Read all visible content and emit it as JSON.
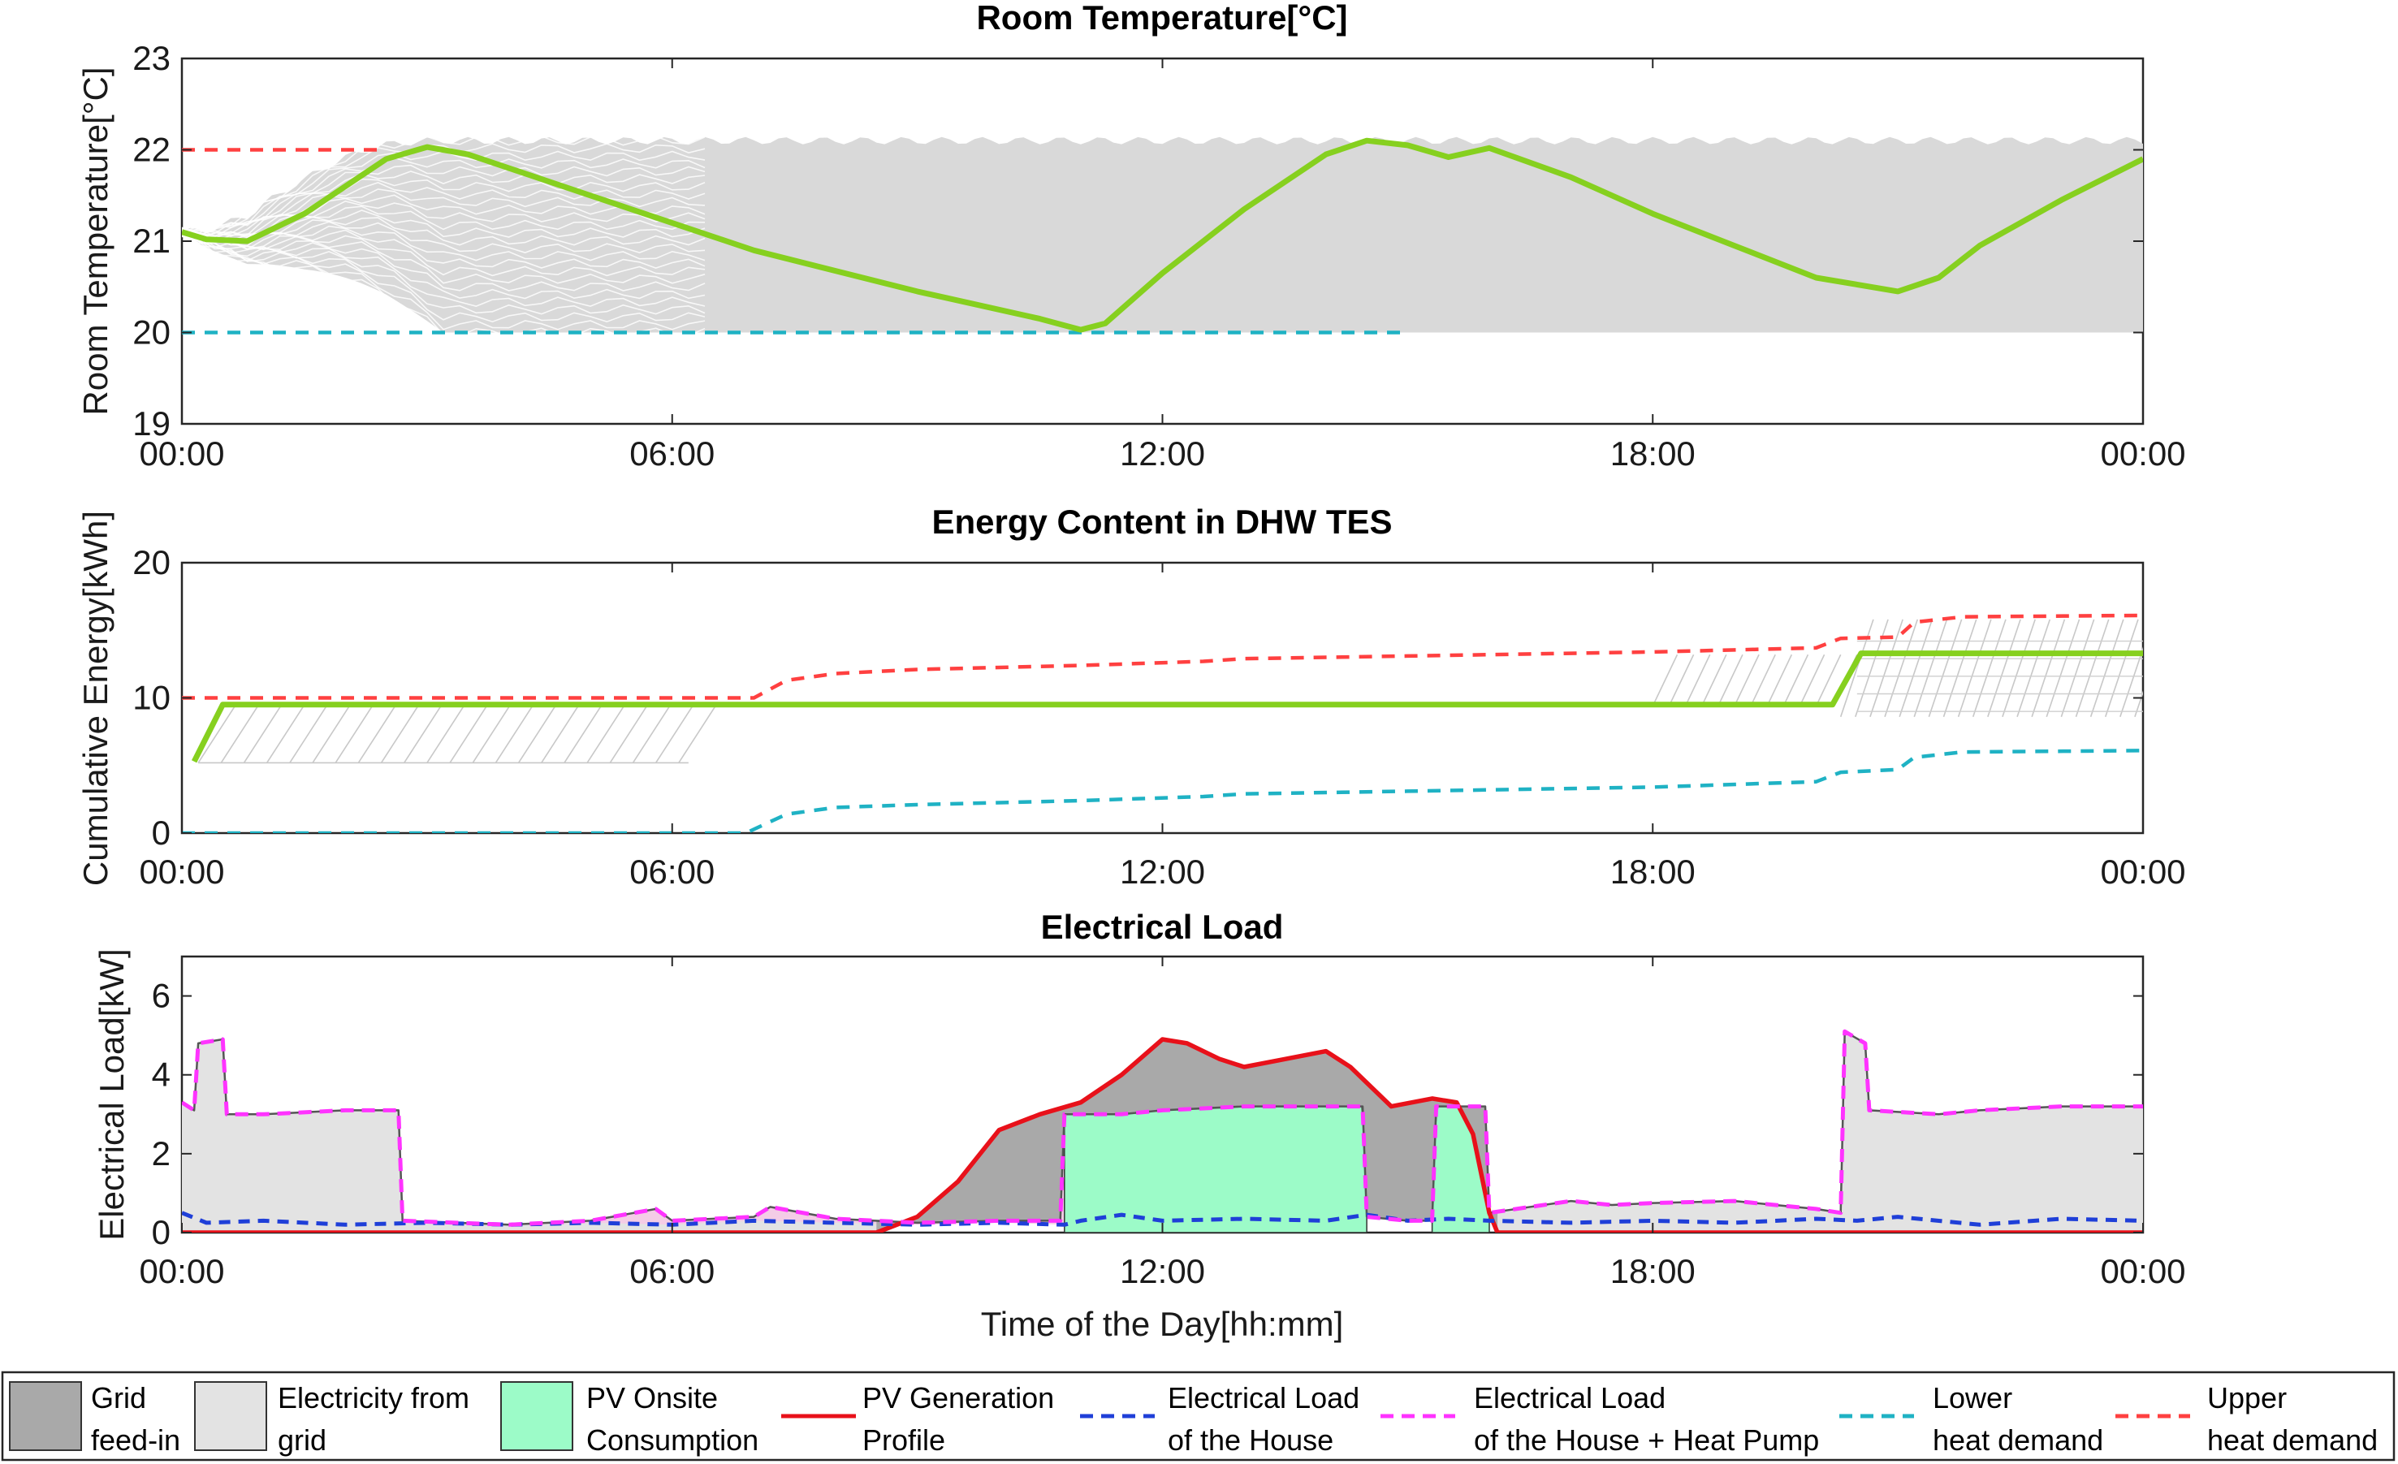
{
  "colors": {
    "grid_feed_in": "#a9a9a9",
    "electricity_from_grid": "#e3e3e3",
    "pv_onsite": "#9cfbc8",
    "pv_generation": "#e8111a",
    "house_load": "#1f3fd8",
    "house_hp_load": "#ff33ff",
    "lower_heat": "#1fb2c4",
    "upper_heat": "#ff4040",
    "actual": "#86d01f",
    "scenarios": "#d9d9d9"
  },
  "legend": [
    {
      "key": "grid_feed_in",
      "line1": "Grid",
      "line2": "feed-in"
    },
    {
      "key": "electricity_from_grid",
      "line1": "Electricity from",
      "line2": "grid"
    },
    {
      "key": "pv_onsite",
      "line1": "PV Onsite",
      "line2": "Consumption"
    },
    {
      "key": "pv_generation",
      "line1": "PV Generation",
      "line2": "Profile"
    },
    {
      "key": "house_load",
      "line1": "Electrical Load",
      "line2": "of the House"
    },
    {
      "key": "house_hp_load",
      "line1": "Electrical Load",
      "line2": "of the House + Heat Pump"
    },
    {
      "key": "lower_heat",
      "line1": "Lower",
      "line2": "heat demand"
    },
    {
      "key": "upper_heat",
      "line1": "Upper",
      "line2": "heat demand"
    }
  ],
  "chart_data": [
    {
      "type": "line",
      "title": "Room Temperature[°C]",
      "ylabel": "Room Temperature[°C]",
      "xlabel": "",
      "xlim": [
        0,
        24
      ],
      "ylim": [
        19,
        23
      ],
      "yticks": [
        19,
        20,
        21,
        22,
        23
      ],
      "xticks": [
        "00:00",
        "06:00",
        "12:00",
        "18:00",
        "00:00"
      ],
      "scenario_band": {
        "lower": 20.0,
        "upper": 22.1,
        "start_hour": 0
      },
      "series": [
        {
          "key": "upper_heat",
          "style": "dashed",
          "x": [
            0,
            2.5
          ],
          "y": [
            22,
            22
          ]
        },
        {
          "key": "lower_heat",
          "style": "dashed",
          "x": [
            0,
            15
          ],
          "y": [
            20,
            20
          ]
        },
        {
          "key": "actual",
          "style": "solid",
          "x": [
            0,
            0.3,
            0.8,
            1.5,
            2.5,
            3.0,
            3.5,
            5.0,
            7.0,
            9.0,
            10.5,
            11.0,
            11.3,
            12.0,
            13.0,
            14.0,
            14.5,
            15.0,
            15.5,
            16.0,
            17.0,
            18.0,
            19.0,
            20.0,
            21.0,
            21.5,
            22.0,
            23.0,
            24.0
          ],
          "y": [
            21.1,
            21.02,
            21.0,
            21.3,
            21.9,
            22.03,
            21.95,
            21.5,
            20.9,
            20.45,
            20.15,
            20.03,
            20.1,
            20.65,
            21.35,
            21.95,
            22.1,
            22.05,
            21.92,
            22.02,
            21.7,
            21.3,
            20.95,
            20.6,
            20.45,
            20.6,
            20.95,
            21.45,
            21.9
          ]
        }
      ]
    },
    {
      "type": "line",
      "title": "Energy Content in DHW TES",
      "ylabel": "Cumulative Energy[kWh]",
      "xlabel": "",
      "xlim": [
        0,
        24
      ],
      "ylim": [
        0,
        20
      ],
      "yticks": [
        0,
        10,
        20
      ],
      "xticks": [
        "00:00",
        "06:00",
        "12:00",
        "18:00",
        "00:00"
      ],
      "series": [
        {
          "key": "upper_heat",
          "style": "dashed",
          "x": [
            0,
            7.0,
            7.4,
            8.0,
            9.0,
            11.0,
            12.5,
            13.0,
            15.0,
            18.0,
            20.0,
            20.3,
            21.0,
            21.2,
            21.8,
            24.0
          ],
          "y": [
            10,
            10,
            11.3,
            11.8,
            12.1,
            12.4,
            12.7,
            12.9,
            13.1,
            13.4,
            13.7,
            14.4,
            14.5,
            15.6,
            16.0,
            16.1
          ]
        },
        {
          "key": "lower_heat",
          "style": "dashed",
          "x": [
            0,
            6.9,
            7.4,
            8.0,
            9.0,
            11.0,
            12.5,
            13.0,
            15.0,
            18.0,
            20.0,
            20.3,
            21.0,
            21.2,
            21.8,
            24.0
          ],
          "y": [
            0,
            0,
            1.4,
            1.9,
            2.1,
            2.4,
            2.7,
            2.9,
            3.1,
            3.4,
            3.8,
            4.5,
            4.7,
            5.6,
            6.0,
            6.1
          ]
        },
        {
          "key": "actual",
          "style": "solid",
          "x": [
            0.15,
            0.5,
            20.2,
            20.55,
            24.0
          ],
          "y": [
            5.3,
            9.5,
            9.5,
            13.3,
            13.3
          ]
        }
      ]
    },
    {
      "type": "area",
      "title": "Electrical Load",
      "ylabel": "Electrical Load[kW]",
      "xlabel": "Time of the Day[hh:mm]",
      "xlim": [
        0,
        24
      ],
      "ylim": [
        0,
        7
      ],
      "yticks": [
        0,
        2,
        4,
        6
      ],
      "xticks": [
        "00:00",
        "06:00",
        "12:00",
        "18:00",
        "00:00"
      ],
      "pv_onsite_intervals": [
        [
          10.8,
          14.5
        ],
        [
          15.3,
          16.0
        ]
      ],
      "series": [
        {
          "key": "pv_generation",
          "style": "solid",
          "x": [
            0,
            8.5,
            9.0,
            9.5,
            10.0,
            10.5,
            11.0,
            11.5,
            12.0,
            12.3,
            12.7,
            13.0,
            13.5,
            14.0,
            14.3,
            14.8,
            15.3,
            15.6,
            15.8,
            16.0,
            16.1,
            24.0
          ],
          "y": [
            0,
            0,
            0.4,
            1.3,
            2.6,
            3.0,
            3.3,
            4.0,
            4.9,
            4.8,
            4.4,
            4.2,
            4.4,
            4.6,
            4.2,
            3.2,
            3.4,
            3.3,
            2.5,
            0.5,
            0,
            0
          ]
        },
        {
          "key": "house_load",
          "style": "dashed",
          "x": [
            0,
            0.3,
            1.0,
            2.0,
            3.0,
            4.0,
            5.0,
            6.0,
            7.0,
            8.0,
            9.0,
            10.0,
            10.8,
            11.0,
            11.5,
            12.0,
            13.0,
            14.0,
            14.5,
            15.0,
            15.5,
            16.0,
            17.0,
            18.0,
            19.0,
            20.0,
            20.5,
            21.0,
            22.0,
            23.0,
            24.0
          ],
          "y": [
            0.5,
            0.25,
            0.3,
            0.2,
            0.25,
            0.2,
            0.25,
            0.2,
            0.3,
            0.25,
            0.2,
            0.25,
            0.2,
            0.3,
            0.45,
            0.3,
            0.35,
            0.3,
            0.45,
            0.3,
            0.35,
            0.3,
            0.25,
            0.3,
            0.25,
            0.35,
            0.3,
            0.4,
            0.2,
            0.35,
            0.3
          ]
        },
        {
          "key": "house_hp_load",
          "style": "dashed",
          "x": [
            0,
            0.15,
            0.2,
            0.5,
            0.55,
            1.0,
            2.0,
            2.65,
            2.7,
            4.0,
            5.0,
            5.8,
            6.0,
            7.0,
            7.2,
            8.0,
            9.0,
            10.0,
            10.75,
            10.8,
            11.5,
            12.0,
            13.0,
            14.0,
            14.45,
            14.5,
            15.0,
            15.3,
            15.35,
            15.95,
            16.0,
            17.0,
            17.5,
            18.0,
            19.0,
            20.0,
            20.3,
            20.35,
            20.6,
            20.65,
            21.5,
            22.0,
            23.0,
            24.0
          ],
          "y": [
            3.3,
            3.1,
            4.8,
            4.9,
            3.0,
            3.0,
            3.1,
            3.1,
            0.3,
            0.2,
            0.3,
            0.6,
            0.3,
            0.4,
            0.65,
            0.35,
            0.25,
            0.3,
            0.3,
            3.0,
            3.0,
            3.1,
            3.2,
            3.2,
            3.2,
            0.4,
            0.3,
            0.3,
            3.2,
            3.2,
            0.5,
            0.8,
            0.7,
            0.75,
            0.8,
            0.6,
            0.5,
            5.1,
            4.8,
            3.1,
            3.0,
            3.1,
            3.2,
            3.2
          ]
        }
      ]
    }
  ]
}
